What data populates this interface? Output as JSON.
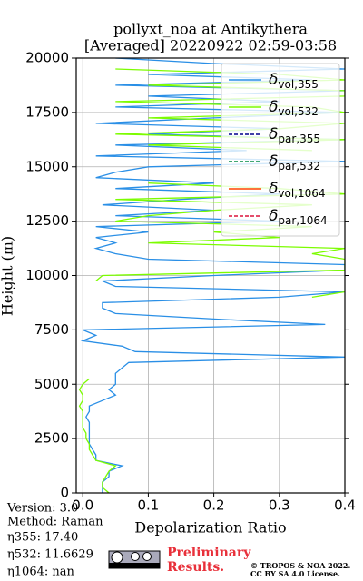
{
  "chart_data": {
    "type": "line",
    "title": [
      "pollyxt_noa at Antikythera",
      "[Averaged] 20220922 02:59-03:58"
    ],
    "xlabel": "Depolarization Ratio",
    "ylabel": "Height (m)",
    "y": [
      0,
      250,
      500,
      750,
      1000,
      1250,
      1500,
      1750,
      2000,
      2250,
      2500,
      2750,
      3000,
      3250,
      3500,
      3750,
      4000,
      4250,
      4500,
      4750,
      5000,
      5250,
      5500,
      5750,
      6000,
      6250,
      6500,
      6750,
      7000,
      7250,
      7500,
      7750,
      8000,
      8250,
      8500,
      8750,
      9000,
      9250,
      9500,
      9750,
      10000,
      10250,
      10500,
      10750,
      11000,
      11250,
      11500,
      11750,
      12000,
      12250,
      12500,
      12750,
      13000,
      13250,
      13500,
      13750,
      14000,
      14250,
      14500,
      14750,
      15000,
      15250,
      15500,
      15750,
      16000,
      16250,
      16500,
      16750,
      17000,
      17250,
      17500,
      17750,
      18000,
      18250,
      18500,
      18750,
      19000,
      19250,
      19500,
      19750,
      20000
    ],
    "series": [
      {
        "name": "δvol,355",
        "color": "#2a8fe6",
        "linestyle": "solid",
        "values": [
          0.03,
          0.03,
          0.03,
          0.04,
          0.04,
          0.06,
          0.02,
          0.02,
          0.015,
          0.01,
          0.01,
          0.01,
          0.01,
          0.01,
          0.005,
          0.01,
          0.01,
          0.03,
          0.05,
          0.04,
          0.05,
          0.05,
          0.05,
          0.06,
          0.07,
          0.4,
          0.08,
          0.06,
          0.0,
          0.02,
          0.0,
          0.37,
          0.2,
          0.05,
          0.03,
          0.03,
          0.3,
          0.4,
          0.05,
          0.03,
          0.2,
          0.4,
          0.4,
          0.1,
          0.05,
          0.02,
          0.05,
          0.02,
          0.1,
          0.02,
          0.3,
          0.05,
          0.2,
          0.03,
          0.15,
          0.3,
          0.05,
          0.2,
          0.02,
          0.05,
          0.1,
          0.4,
          0.02,
          0.25,
          0.05,
          0.4,
          0.1,
          0.3,
          0.02,
          0.2,
          0.4,
          0.05,
          0.3,
          0.1,
          0.4,
          0.05,
          0.35,
          0.1,
          0.4,
          0.2,
          0.05
        ]
      },
      {
        "name": "δvol,532",
        "color": "#7cfc00",
        "linestyle": "solid",
        "values": [
          0.04,
          0.03,
          0.03,
          0.035,
          0.04,
          0.05,
          0.02,
          0.015,
          0.01,
          0.01,
          0.005,
          0.005,
          0.0,
          0.0,
          0.0,
          0.0,
          -0.005,
          0.0,
          0.0,
          -0.005,
          0.0,
          0.01,
          null,
          null,
          null,
          null,
          null,
          null,
          null,
          null,
          null,
          null,
          null,
          null,
          null,
          null,
          0.35,
          0.4,
          null,
          0.02,
          0.03,
          0.4,
          0.4,
          0.4,
          0.35,
          0.4,
          0.1,
          0.3,
          0.2,
          0.35,
          0.05,
          0.1,
          0.2,
          0.35,
          0.05,
          0.4,
          0.3,
          0.1,
          null,
          0.2,
          null,
          0.4,
          null,
          0.35,
          0.1,
          0.4,
          0.05,
          0.3,
          0.4,
          0.1,
          0.4,
          0.35,
          0.05,
          0.4,
          0.4,
          0.1,
          0.4,
          0.3,
          0.05,
          null,
          null
        ]
      },
      {
        "name": "δpar,355",
        "color": "#00008b",
        "linestyle": "dashed",
        "values": [
          null,
          null,
          null,
          null,
          null,
          null,
          null,
          null,
          null,
          null,
          null,
          null,
          null,
          null,
          null,
          null,
          null,
          null,
          null,
          null,
          null,
          null,
          null,
          null,
          null,
          null,
          null,
          null,
          null,
          null,
          null,
          null,
          null,
          null,
          null,
          null,
          null,
          null,
          null,
          null,
          null,
          null,
          null,
          null,
          null,
          null,
          null,
          null,
          null,
          null,
          null,
          null,
          null,
          null,
          null,
          null,
          null,
          null,
          null,
          null,
          null,
          null,
          null,
          null,
          null,
          null,
          null,
          null,
          null,
          null,
          null,
          null,
          null,
          null,
          null,
          null,
          null,
          null,
          null,
          null,
          null
        ]
      },
      {
        "name": "δpar,532",
        "color": "#008b45",
        "linestyle": "dashed",
        "values": [
          null,
          null,
          null,
          null,
          null,
          null,
          null,
          null,
          null,
          null,
          null,
          null,
          null,
          null,
          null,
          null,
          null,
          null,
          null,
          null,
          null,
          null,
          null,
          null,
          null,
          null,
          null,
          null,
          null,
          null,
          null,
          null,
          null,
          null,
          null,
          null,
          null,
          null,
          null,
          null,
          null,
          null,
          null,
          null,
          null,
          null,
          null,
          null,
          null,
          null,
          null,
          null,
          null,
          null,
          null,
          null,
          null,
          null,
          null,
          null,
          null,
          null,
          null,
          null,
          null,
          null,
          null,
          null,
          null,
          null,
          null,
          null,
          null,
          null,
          null,
          null,
          null,
          null,
          null,
          null,
          null
        ]
      },
      {
        "name": "δvol,1064",
        "color": "#ff4500",
        "linestyle": "solid",
        "values": [
          null,
          null,
          null,
          null,
          null,
          null,
          null,
          null,
          null,
          null,
          null,
          null,
          null,
          null,
          null,
          null,
          null,
          null,
          null,
          null,
          null,
          null,
          null,
          null,
          null,
          null,
          null,
          null,
          null,
          null,
          null,
          null,
          null,
          null,
          null,
          null,
          null,
          null,
          null,
          null,
          null,
          null,
          null,
          null,
          null,
          null,
          null,
          null,
          null,
          null,
          null,
          null,
          null,
          null,
          null,
          null,
          null,
          null,
          null,
          null,
          null,
          null,
          null,
          null,
          null,
          null,
          null,
          null,
          null,
          null,
          null,
          null,
          null,
          null,
          null,
          null,
          null,
          null,
          null,
          null,
          null
        ]
      },
      {
        "name": "δpar,1064",
        "color": "#dc143c",
        "linestyle": "dashed",
        "values": [
          null,
          null,
          null,
          null,
          null,
          null,
          null,
          null,
          null,
          null,
          null,
          null,
          null,
          null,
          null,
          null,
          null,
          null,
          null,
          null,
          null,
          null,
          null,
          null,
          null,
          null,
          null,
          null,
          null,
          null,
          null,
          null,
          null,
          null,
          null,
          null,
          null,
          null,
          null,
          null,
          null,
          null,
          null,
          null,
          null,
          null,
          null,
          null,
          null,
          null,
          null,
          null,
          null,
          null,
          null,
          null,
          null,
          null,
          null,
          null,
          null,
          null,
          null,
          null,
          null,
          null,
          null,
          null,
          null,
          null,
          null,
          null,
          null,
          null,
          null,
          null,
          null,
          null,
          null,
          null,
          null
        ]
      }
    ],
    "xlim": [
      -0.01,
      0.4
    ],
    "xticks": [
      {
        "value": 0,
        "label": "0.0"
      },
      0.1,
      0.2,
      0.3,
      0.4
    ],
    "ylim": [
      0,
      20000
    ],
    "yticks": [
      0,
      2500,
      5000,
      7500,
      10000,
      12500,
      15000,
      17500,
      20000
    ],
    "grid": true,
    "legend": "upper right"
  },
  "footer": {
    "version": "Version: 3.0",
    "method": "Method: Raman",
    "eta355": "η355:  17.40",
    "eta532": "η532: 11.6629",
    "eta1064": "η1064:    nan",
    "preliminary": [
      "Preliminary",
      "Results."
    ],
    "copyright": [
      "© TROPOS & NOA 2022.",
      "CC BY SA 4.0 License."
    ]
  }
}
